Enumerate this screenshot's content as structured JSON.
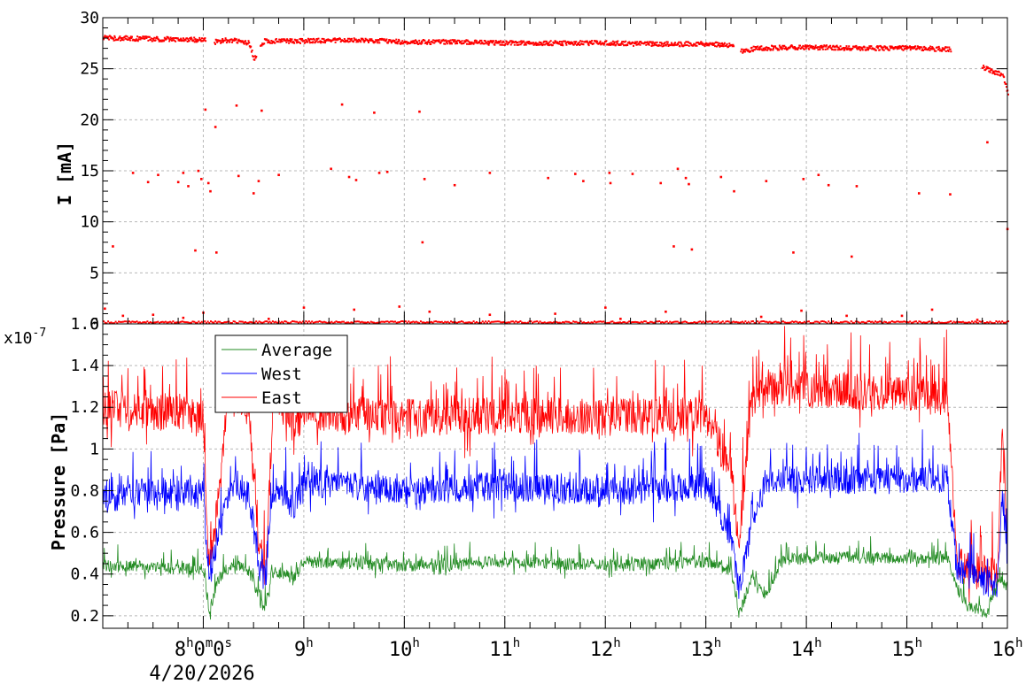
{
  "chart_data": [
    {
      "type": "scatter",
      "ylabel": "I [mA]",
      "ylim": [
        0,
        30
      ],
      "yticks": [
        0,
        5,
        10,
        15,
        20,
        25,
        30
      ],
      "grid": true,
      "series": [
        {
          "color": "#ff0000",
          "base_points": [
            [
              7.0,
              28.1
            ],
            [
              7.5,
              28.0
            ],
            [
              8.0,
              27.9
            ],
            [
              8.1,
              27.7
            ],
            [
              8.25,
              27.9
            ],
            [
              8.45,
              27.6
            ],
            [
              8.5,
              26.0
            ],
            [
              8.6,
              27.8
            ],
            [
              9.0,
              27.8
            ],
            [
              9.5,
              27.9
            ],
            [
              10.0,
              27.7
            ],
            [
              10.5,
              27.7
            ],
            [
              11.0,
              27.6
            ],
            [
              11.5,
              27.6
            ],
            [
              12.0,
              27.6
            ],
            [
              12.5,
              27.5
            ],
            [
              13.0,
              27.5
            ],
            [
              13.25,
              27.4
            ],
            [
              13.35,
              26.8
            ],
            [
              13.5,
              27.1
            ],
            [
              14.0,
              27.2
            ],
            [
              14.5,
              27.1
            ],
            [
              15.0,
              27.1
            ],
            [
              15.42,
              27.0
            ],
            [
              15.8,
              25.0
            ],
            [
              15.95,
              24.5
            ],
            [
              16.0,
              22.5
            ]
          ],
          "outliers": [
            [
              7.02,
              1.5
            ],
            [
              7.1,
              7.6
            ],
            [
              7.3,
              14.8
            ],
            [
              7.45,
              13.9
            ],
            [
              7.55,
              14.6
            ],
            [
              7.75,
              13.9
            ],
            [
              7.8,
              14.8
            ],
            [
              7.85,
              13.5
            ],
            [
              7.92,
              7.2
            ],
            [
              7.95,
              15.0
            ],
            [
              7.98,
              14.2
            ],
            [
              8.02,
              21.0
            ],
            [
              8.05,
              13.8
            ],
            [
              8.07,
              13.0
            ],
            [
              8.12,
              19.3
            ],
            [
              8.13,
              7.0
            ],
            [
              8.33,
              21.4
            ],
            [
              8.35,
              14.5
            ],
            [
              8.5,
              12.8
            ],
            [
              8.55,
              14.0
            ],
            [
              8.58,
              20.9
            ],
            [
              8.75,
              14.6
            ],
            [
              9.27,
              15.2
            ],
            [
              9.38,
              21.5
            ],
            [
              9.45,
              14.4
            ],
            [
              9.52,
              14.1
            ],
            [
              9.7,
              20.7
            ],
            [
              9.75,
              14.8
            ],
            [
              9.83,
              14.9
            ],
            [
              10.15,
              20.8
            ],
            [
              10.18,
              8.0
            ],
            [
              10.2,
              14.2
            ],
            [
              10.5,
              13.6
            ],
            [
              10.85,
              14.8
            ],
            [
              11.43,
              14.3
            ],
            [
              11.7,
              14.7
            ],
            [
              11.78,
              14.0
            ],
            [
              12.04,
              14.8
            ],
            [
              12.05,
              13.8
            ],
            [
              12.27,
              14.7
            ],
            [
              12.55,
              13.8
            ],
            [
              12.68,
              7.6
            ],
            [
              12.72,
              15.2
            ],
            [
              12.8,
              14.3
            ],
            [
              12.83,
              13.7
            ],
            [
              12.86,
              7.3
            ],
            [
              13.15,
              14.4
            ],
            [
              13.28,
              13.0
            ],
            [
              13.6,
              14.0
            ],
            [
              13.87,
              7.0
            ],
            [
              13.97,
              14.2
            ],
            [
              14.12,
              14.6
            ],
            [
              14.22,
              13.6
            ],
            [
              14.45,
              6.6
            ],
            [
              14.5,
              13.5
            ],
            [
              15.12,
              12.8
            ],
            [
              15.43,
              12.7
            ],
            [
              15.8,
              17.8
            ],
            [
              16.0,
              9.3
            ],
            [
              7.2,
              0.8
            ],
            [
              7.5,
              0.9
            ],
            [
              7.8,
              0.6
            ],
            [
              8.0,
              1.1
            ],
            [
              8.65,
              0.5
            ],
            [
              9.0,
              1.6
            ],
            [
              9.5,
              1.4
            ],
            [
              9.95,
              1.7
            ],
            [
              10.25,
              1.2
            ],
            [
              10.85,
              0.9
            ],
            [
              11.5,
              1.0
            ],
            [
              12.0,
              1.6
            ],
            [
              12.15,
              0.5
            ],
            [
              12.6,
              1.2
            ],
            [
              13.55,
              0.7
            ],
            [
              13.95,
              1.3
            ],
            [
              14.4,
              0.8
            ],
            [
              14.95,
              0.8
            ],
            [
              15.25,
              1.4
            ],
            [
              15.7,
              0.4
            ]
          ]
        }
      ]
    },
    {
      "type": "line",
      "ylabel": "Pressure [Pa]",
      "yscale_label": "x10",
      "yscale_exp": "-7",
      "ylim": [
        0.14,
        1.6
      ],
      "yticks": [
        0.2,
        0.4,
        0.6,
        0.8,
        1,
        1.2,
        1.4,
        1.6
      ],
      "ytick_labels": [
        "0.2",
        "0.4",
        "0.6",
        "0.8",
        "1",
        "1.2",
        "1.4",
        "1.6"
      ],
      "xlim": [
        7.0,
        16.0
      ],
      "x_axis_unit": "hour of 4/20/2026",
      "grid": true,
      "legend": "top-left",
      "series": [
        {
          "name": "Average",
          "color": "#228b22",
          "base_points": [
            [
              7.0,
              0.44
            ],
            [
              7.6,
              0.43
            ],
            [
              8.0,
              0.42
            ],
            [
              8.06,
              0.22
            ],
            [
              8.15,
              0.38
            ],
            [
              8.3,
              0.45
            ],
            [
              8.45,
              0.42
            ],
            [
              8.55,
              0.3
            ],
            [
              8.6,
              0.22
            ],
            [
              8.7,
              0.42
            ],
            [
              8.9,
              0.38
            ],
            [
              9.0,
              0.46
            ],
            [
              10.0,
              0.44
            ],
            [
              11.0,
              0.46
            ],
            [
              12.0,
              0.44
            ],
            [
              13.0,
              0.46
            ],
            [
              13.25,
              0.42
            ],
            [
              13.33,
              0.2
            ],
            [
              13.45,
              0.38
            ],
            [
              13.6,
              0.3
            ],
            [
              13.75,
              0.47
            ],
            [
              14.5,
              0.48
            ],
            [
              15.4,
              0.48
            ],
            [
              15.5,
              0.33
            ],
            [
              15.6,
              0.25
            ],
            [
              15.8,
              0.21
            ],
            [
              15.9,
              0.38
            ],
            [
              16.0,
              0.35
            ]
          ],
          "noise": 0.06
        },
        {
          "name": "West",
          "color": "#0000ff",
          "base_points": [
            [
              7.0,
              0.76
            ],
            [
              7.5,
              0.8
            ],
            [
              8.0,
              0.78
            ],
            [
              8.06,
              0.38
            ],
            [
              8.15,
              0.6
            ],
            [
              8.3,
              0.84
            ],
            [
              8.45,
              0.8
            ],
            [
              8.55,
              0.45
            ],
            [
              8.62,
              0.36
            ],
            [
              8.7,
              0.82
            ],
            [
              8.9,
              0.72
            ],
            [
              9.0,
              0.84
            ],
            [
              10.0,
              0.8
            ],
            [
              11.0,
              0.82
            ],
            [
              12.0,
              0.8
            ],
            [
              13.0,
              0.82
            ],
            [
              13.25,
              0.6
            ],
            [
              13.33,
              0.32
            ],
            [
              13.45,
              0.6
            ],
            [
              13.6,
              0.86
            ],
            [
              14.5,
              0.85
            ],
            [
              15.4,
              0.86
            ],
            [
              15.5,
              0.42
            ],
            [
              15.9,
              0.34
            ],
            [
              15.95,
              0.8
            ],
            [
              16.0,
              0.45
            ]
          ],
          "noise": 0.14
        },
        {
          "name": "East",
          "color": "#ff0000",
          "base_points": [
            [
              7.0,
              1.2
            ],
            [
              7.5,
              1.18
            ],
            [
              8.0,
              1.15
            ],
            [
              8.06,
              0.4
            ],
            [
              8.15,
              0.75
            ],
            [
              8.25,
              1.26
            ],
            [
              8.45,
              1.2
            ],
            [
              8.55,
              0.55
            ],
            [
              8.62,
              0.4
            ],
            [
              8.7,
              1.28
            ],
            [
              8.9,
              1.1
            ],
            [
              9.0,
              1.18
            ],
            [
              10.0,
              1.15
            ],
            [
              11.0,
              1.16
            ],
            [
              12.0,
              1.15
            ],
            [
              13.0,
              1.16
            ],
            [
              13.25,
              0.9
            ],
            [
              13.33,
              0.55
            ],
            [
              13.45,
              1.22
            ],
            [
              13.6,
              1.3
            ],
            [
              14.5,
              1.28
            ],
            [
              15.4,
              1.25
            ],
            [
              15.5,
              0.45
            ],
            [
              15.9,
              0.38
            ],
            [
              15.95,
              1.15
            ],
            [
              16.0,
              0.5
            ]
          ],
          "noise": 0.18
        }
      ]
    }
  ],
  "x_axis": {
    "ticks": [
      {
        "value": 8,
        "h": "8",
        "unit": "h",
        "extra": [
          [
            "0",
            "m"
          ],
          [
            "0",
            "s"
          ]
        ]
      },
      {
        "value": 9,
        "h": "9",
        "unit": "h"
      },
      {
        "value": 10,
        "h": "10",
        "unit": "h"
      },
      {
        "value": 11,
        "h": "11",
        "unit": "h"
      },
      {
        "value": 12,
        "h": "12",
        "unit": "h"
      },
      {
        "value": 13,
        "h": "13",
        "unit": "h"
      },
      {
        "value": 14,
        "h": "14",
        "unit": "h"
      },
      {
        "value": 15,
        "h": "15",
        "unit": "h"
      },
      {
        "value": 16,
        "h": "16",
        "unit": "h"
      }
    ],
    "date": "4/20/2026"
  },
  "colors": {
    "grid": "#b8b8b8",
    "frame": "#000000"
  }
}
